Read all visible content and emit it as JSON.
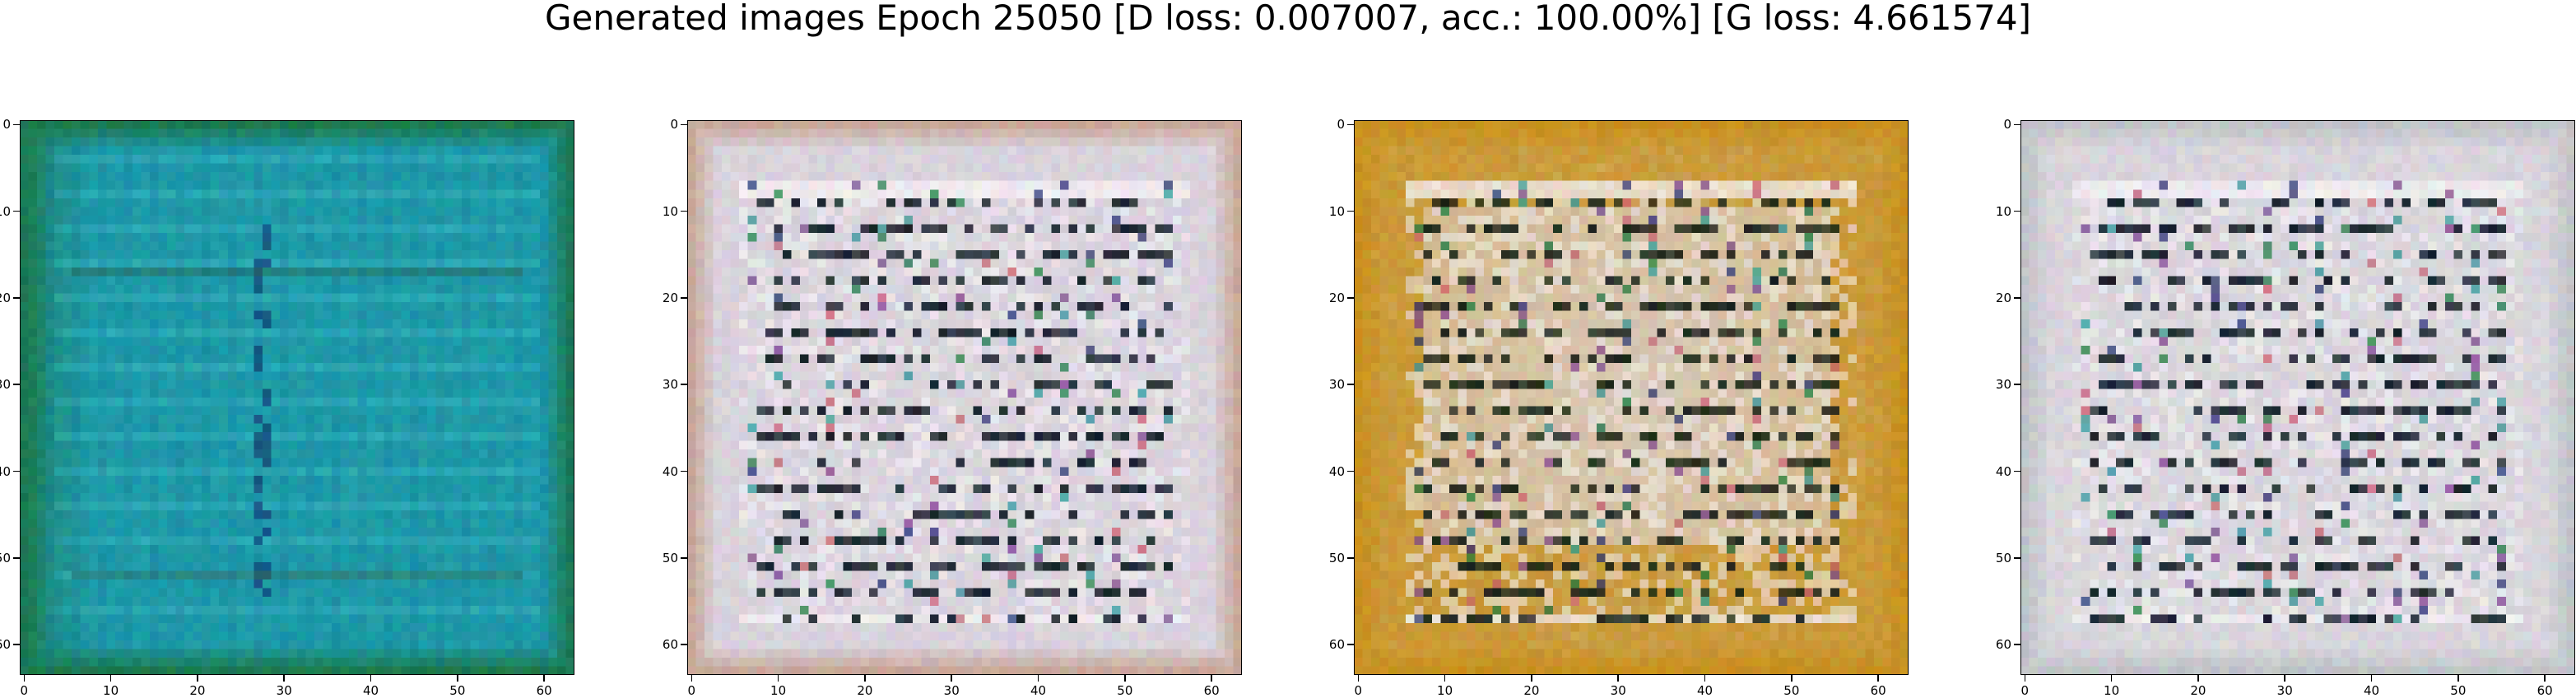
{
  "suptitle": "Generated images Epoch 25050 [D loss: 0.007007, acc.: 100.00%] [G loss: 4.661574]",
  "axis": {
    "xticks": [
      "0",
      "10",
      "20",
      "30",
      "40",
      "50",
      "60"
    ],
    "yticks": [
      "0",
      "10",
      "20",
      "30",
      "40",
      "50",
      "60"
    ],
    "range": [
      0,
      63
    ]
  },
  "panels": [
    {
      "id": "generated-image-1",
      "palette": "teal",
      "colors": {
        "base": "#1e9aa8",
        "edge": "#1d7a4a",
        "highlight": "#4fd0d8",
        "dark": "#12306a"
      }
    },
    {
      "id": "generated-image-2",
      "palette": "pale-grid",
      "colors": {
        "base": "#d9d3dc",
        "edge": "#c8a89a",
        "highlight": "#f2eef2",
        "dark": "#15202a"
      }
    },
    {
      "id": "generated-image-3",
      "palette": "ochre",
      "colors": {
        "base": "#d8c9b8",
        "edge": "#c8901e",
        "highlight": "#efe8e4",
        "dark": "#1a2418"
      }
    },
    {
      "id": "generated-image-4",
      "palette": "pale-grid",
      "colors": {
        "base": "#d9d5dc",
        "edge": "#c0c4c8",
        "highlight": "#f0eef2",
        "dark": "#15202a"
      }
    }
  ]
}
